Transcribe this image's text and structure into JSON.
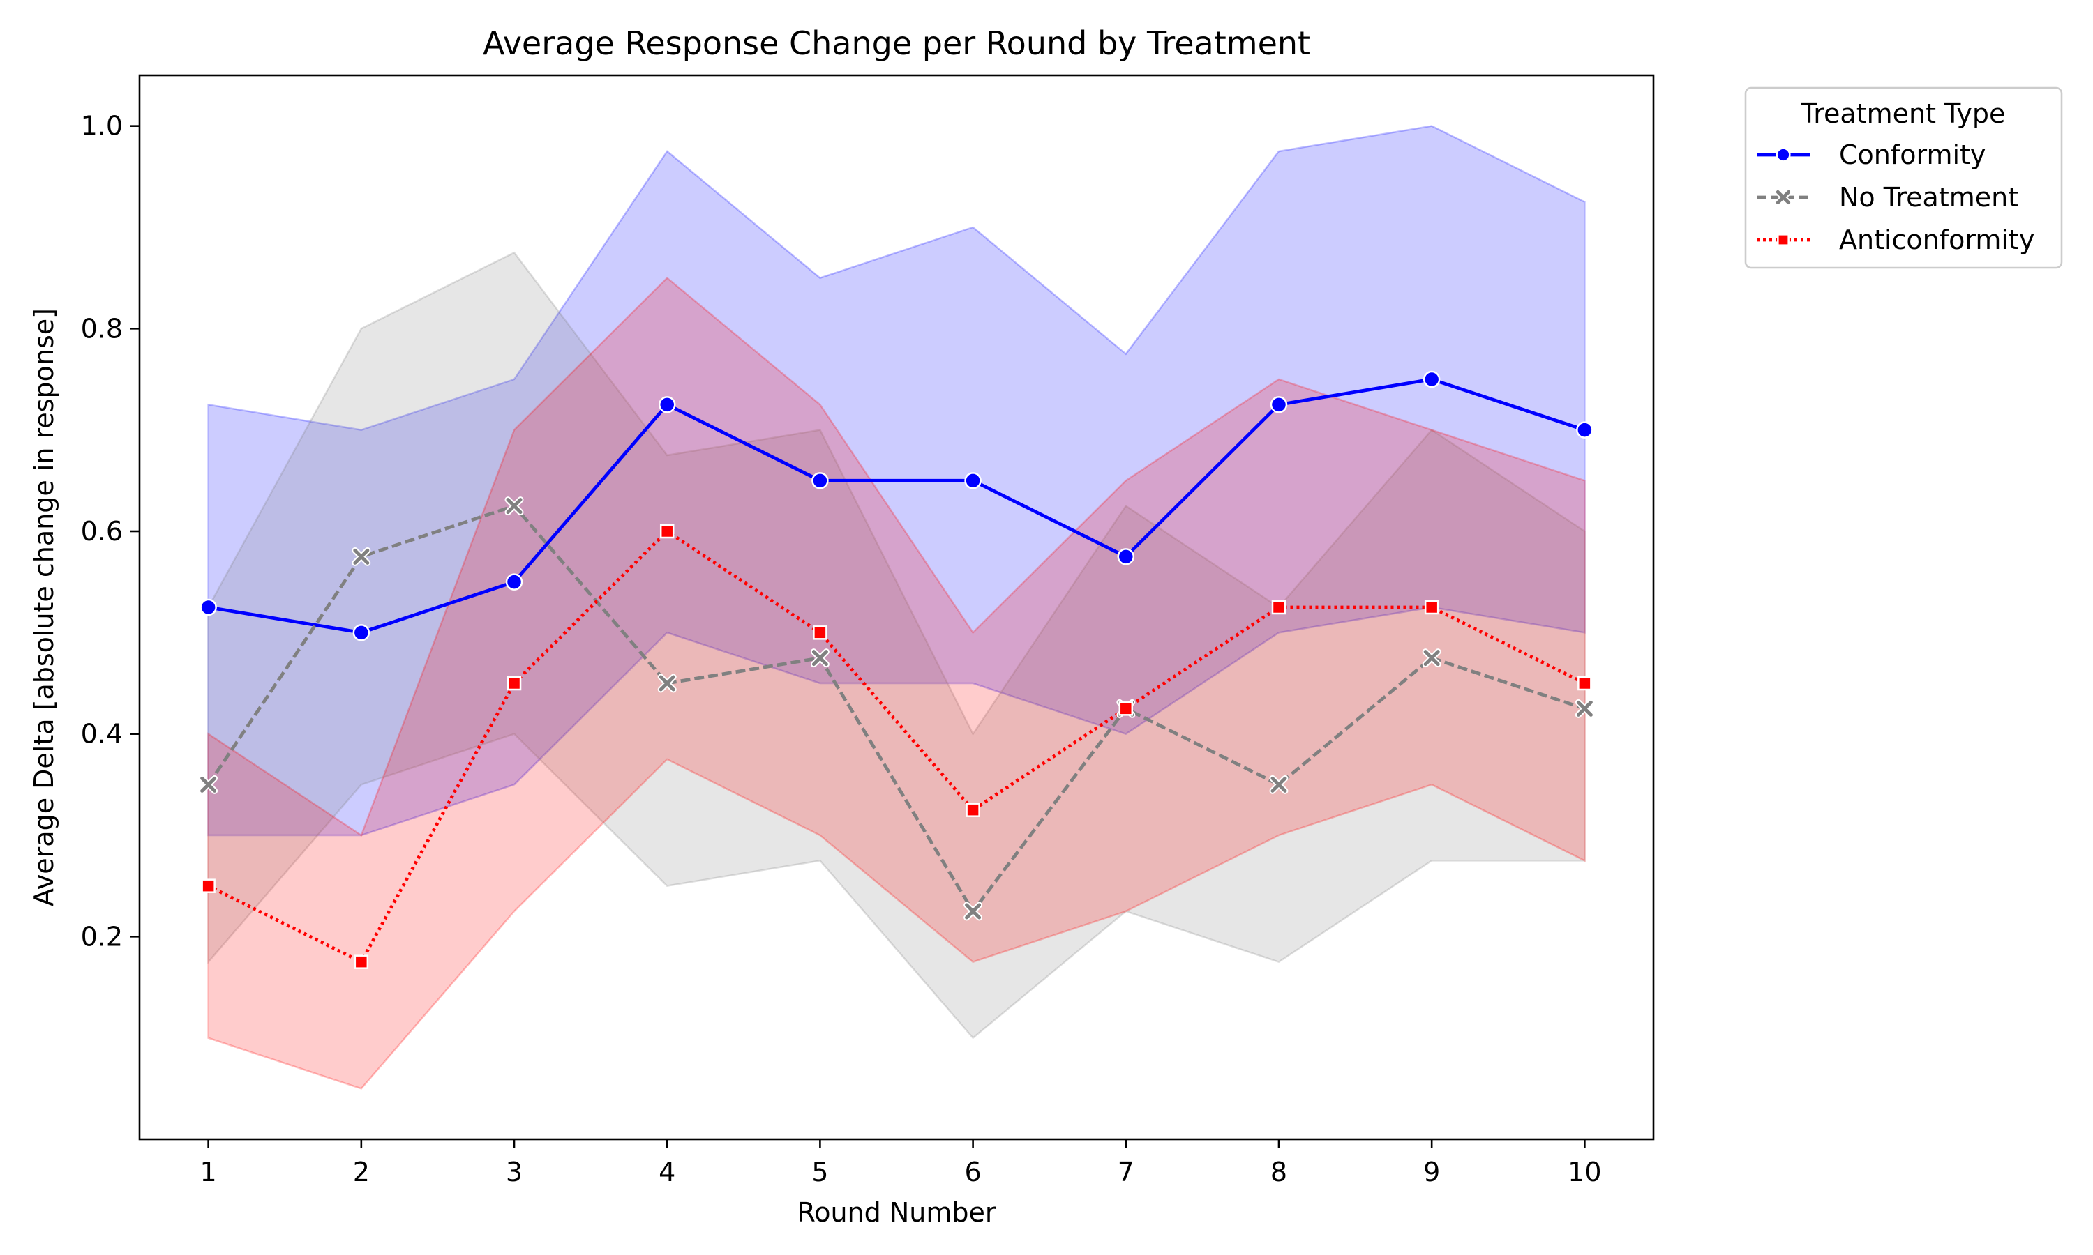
{
  "chart_data": {
    "type": "line",
    "title": "Average Response Change per Round by Treatment",
    "xlabel": "Round Number",
    "ylabel": "Average Delta [absolute change in response]",
    "x": [
      1,
      2,
      3,
      4,
      5,
      6,
      7,
      8,
      9,
      10
    ],
    "xlim": [
      0.55,
      10.45
    ],
    "ylim": [
      0.0,
      1.05
    ],
    "yticks": [
      0.2,
      0.4,
      0.6,
      0.8,
      1.0
    ],
    "ytick_labels": [
      "0.2",
      "0.4",
      "0.6",
      "0.8",
      "1.0"
    ],
    "xtick_labels": [
      "1",
      "2",
      "3",
      "4",
      "5",
      "6",
      "7",
      "8",
      "9",
      "10"
    ],
    "grid": false,
    "legend": {
      "title": "Treatment Type",
      "position": "outside-top-right"
    },
    "series": [
      {
        "name": "Conformity",
        "color": "#0000ff",
        "linestyle": "solid",
        "marker": "circle",
        "values": [
          0.525,
          0.5,
          0.55,
          0.725,
          0.65,
          0.65,
          0.575,
          0.725,
          0.75,
          0.7
        ],
        "ci_lower": [
          0.3,
          0.3,
          0.35,
          0.5,
          0.45,
          0.45,
          0.4,
          0.5,
          0.525,
          0.5
        ],
        "ci_upper": [
          0.725,
          0.7,
          0.75,
          0.975,
          0.85,
          0.9,
          0.775,
          0.975,
          1.0,
          0.925
        ]
      },
      {
        "name": "No Treatment",
        "color": "#808080",
        "linestyle": "dashed",
        "marker": "x",
        "values": [
          0.35,
          0.575,
          0.625,
          0.45,
          0.475,
          0.225,
          0.425,
          0.35,
          0.475,
          0.425
        ],
        "ci_lower": [
          0.175,
          0.35,
          0.4,
          0.25,
          0.275,
          0.1,
          0.225,
          0.175,
          0.275,
          0.275
        ],
        "ci_upper": [
          0.525,
          0.8,
          0.875,
          0.675,
          0.7,
          0.4,
          0.625,
          0.525,
          0.7,
          0.6
        ]
      },
      {
        "name": "Anticonformity",
        "color": "#ff0000",
        "linestyle": "dotted",
        "marker": "square",
        "values": [
          0.25,
          0.175,
          0.45,
          0.6,
          0.5,
          0.325,
          0.425,
          0.525,
          0.525,
          0.45
        ],
        "ci_lower": [
          0.1,
          0.05,
          0.225,
          0.375,
          0.3,
          0.175,
          0.225,
          0.3,
          0.35,
          0.275
        ],
        "ci_upper": [
          0.4,
          0.3,
          0.7,
          0.85,
          0.725,
          0.5,
          0.65,
          0.75,
          0.7,
          0.65
        ]
      }
    ]
  }
}
